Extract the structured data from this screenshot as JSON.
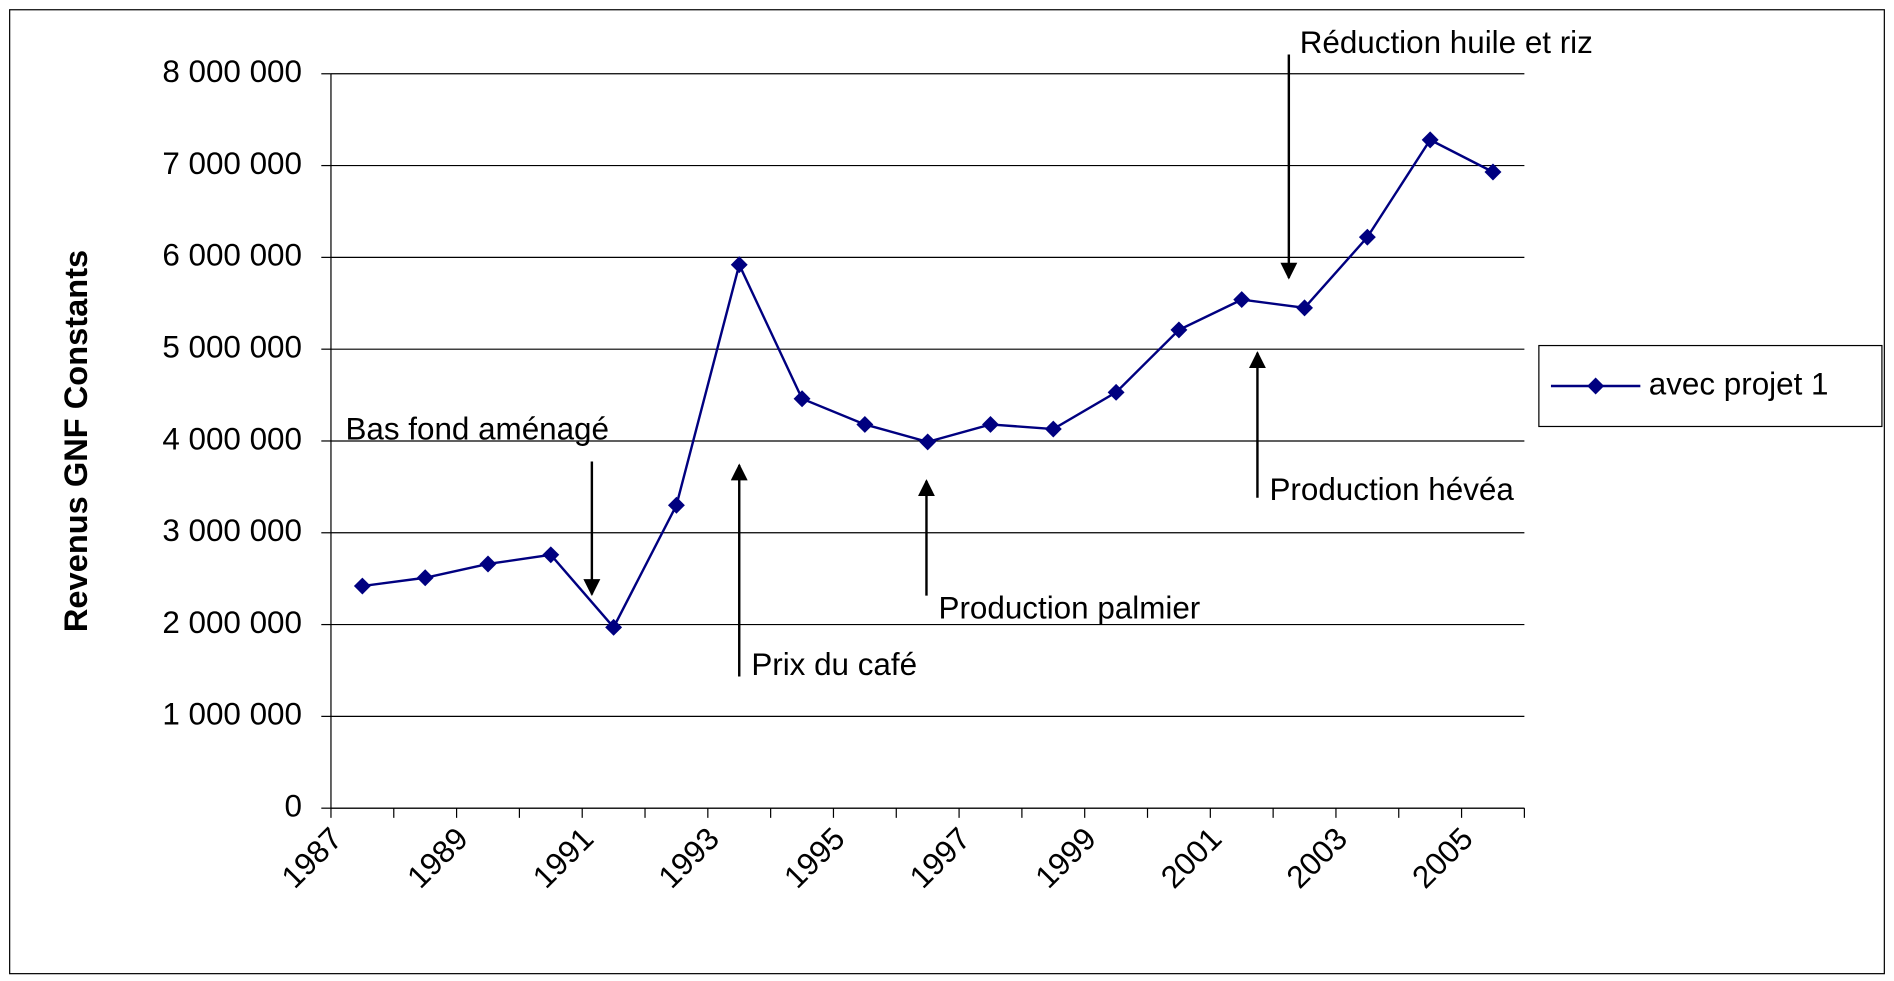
{
  "chart_data": {
    "type": "line",
    "ylabel": "Revenus GNF Constants",
    "categories": [
      "1987",
      null,
      "1989",
      null,
      "1991",
      null,
      "1993",
      null,
      "1995",
      null,
      "1997",
      null,
      "1999",
      null,
      "2001",
      null,
      "2003",
      null,
      "2005"
    ],
    "series": [
      {
        "name": "avec projet 1",
        "color": "#000080",
        "values": [
          2420000,
          2510000,
          2660000,
          2760000,
          1970000,
          3300000,
          5920000,
          4460000,
          4180000,
          3990000,
          4180000,
          4130000,
          4530000,
          5210000,
          5540000,
          5450000,
          6220000,
          7280000,
          6930000
        ]
      }
    ],
    "ylim": [
      0,
      8000000
    ],
    "yticks": [
      0,
      {
        "value": 1000000,
        "label": "1 000 000"
      },
      {
        "value": 2000000,
        "label": "2 000 000"
      },
      {
        "value": 3000000,
        "label": "3 000 000"
      },
      {
        "value": 4000000,
        "label": "4 000 000"
      },
      {
        "value": 5000000,
        "label": "5 000 000"
      },
      {
        "value": 6000000,
        "label": "6 000 000"
      },
      {
        "value": 7000000,
        "label": "7 000 000"
      },
      {
        "value": 8000000,
        "label": "8 000 000"
      }
    ],
    "grid": true,
    "legend": "right",
    "annotations": [
      {
        "text": "Réduction huile et riz"
      },
      {
        "text": "Bas fond aménagé"
      },
      {
        "text": "Prix du café"
      },
      {
        "text": "Production palmier"
      },
      {
        "text": "Production hévéa"
      }
    ]
  }
}
